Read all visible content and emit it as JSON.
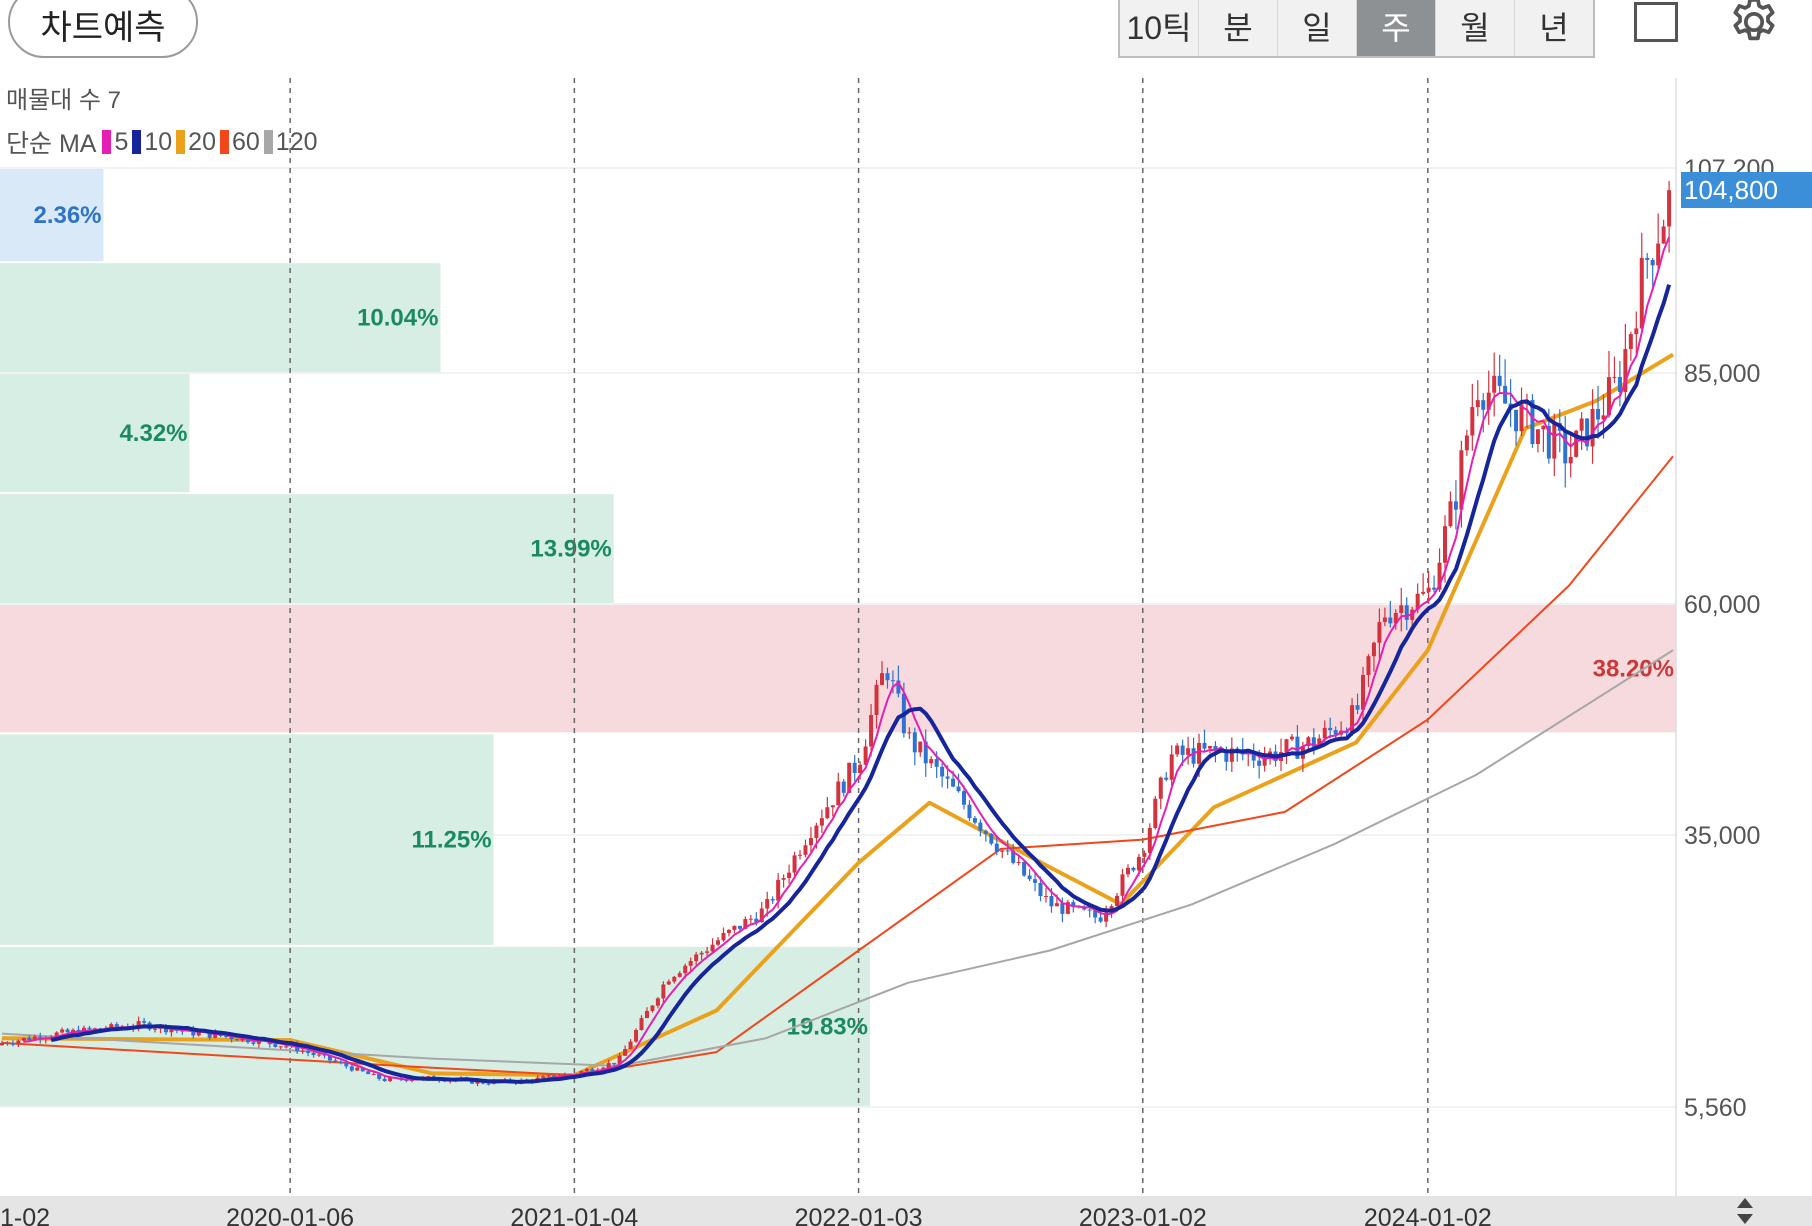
{
  "toolbar": {
    "predict_label": "차트예측",
    "periods": [
      "10틱",
      "분",
      "일",
      "주",
      "월",
      "년"
    ],
    "active_period": "주",
    "icons": [
      "square-icon",
      "gear-icon"
    ]
  },
  "chart_header": {
    "volume_profile_label": "매물대 수 7",
    "ma_prefix": "단순 MA",
    "ma_items": [
      {
        "label": "5",
        "color": "#e61fb4"
      },
      {
        "label": "10",
        "color": "#17259a"
      },
      {
        "label": "20",
        "color": "#eaa21c"
      },
      {
        "label": "60",
        "color": "#f1471b"
      },
      {
        "label": "120",
        "color": "#a7a7a7"
      }
    ]
  },
  "last_price_label": "104,800",
  "chart_data": {
    "type": "candlestick",
    "period": "weekly",
    "x_tick_labels": [
      "1-02",
      "2020-01-06",
      "2021-01-04",
      "2022-01-03",
      "2023-01-02",
      "2024-01-02"
    ],
    "y_tick_labels": [
      "107,200",
      "85,000",
      "60,000",
      "35,000",
      "5,560"
    ],
    "y_ticks": [
      107200,
      85000,
      60000,
      35000,
      5560
    ],
    "last_price": 104800,
    "grid": true,
    "colors": {
      "up": "#d3323f",
      "down": "#2f73d1",
      "volume_profile": "#d7eee4",
      "volume_profile_max": "#f7dadd",
      "volume_profile_top": "#d9e9f8"
    },
    "volume_profile": [
      {
        "range": [
          97000,
          107200
        ],
        "pct": "2.36%",
        "value": 2.36,
        "label_color": "#2f73c4"
      },
      {
        "range": [
          85000,
          97000
        ],
        "pct": "10.04%",
        "value": 10.04,
        "label_color": "#1a8a63"
      },
      {
        "range": [
          72000,
          85000
        ],
        "pct": "4.32%",
        "value": 4.32,
        "label_color": "#1a8a63"
      },
      {
        "range": [
          60000,
          72000
        ],
        "pct": "13.99%",
        "value": 13.99,
        "label_color": "#1a8a63"
      },
      {
        "range": [
          46000,
          60000
        ],
        "pct": "38.20%",
        "value": 38.2,
        "label_color": "#c83a3a"
      },
      {
        "range": [
          23000,
          46000
        ],
        "pct": "11.25%",
        "value": 11.25,
        "label_color": "#1a8a63"
      },
      {
        "range": [
          5560,
          23000
        ],
        "pct": "19.83%",
        "value": 19.83,
        "label_color": "#1a8a63"
      }
    ],
    "price_series": [
      [
        "2019-01-02",
        12500
      ],
      [
        "2019-03-04",
        13400
      ],
      [
        "2019-05-06",
        14000
      ],
      [
        "2019-07-01",
        14500
      ],
      [
        "2019-09-02",
        13600
      ],
      [
        "2019-11-04",
        13000
      ],
      [
        "2020-01-06",
        12100
      ],
      [
        "2020-03-02",
        10500
      ],
      [
        "2020-05-04",
        8500
      ],
      [
        "2020-07-06",
        8700
      ],
      [
        "2020-09-07",
        8200
      ],
      [
        "2020-11-02",
        8400
      ],
      [
        "2021-01-04",
        9200
      ],
      [
        "2021-03-01",
        10500
      ],
      [
        "2021-05-03",
        19500
      ],
      [
        "2021-07-05",
        23500
      ],
      [
        "2021-09-06",
        27000
      ],
      [
        "2021-11-01",
        35500
      ],
      [
        "2022-01-03",
        43000
      ],
      [
        "2022-02-07",
        53500
      ],
      [
        "2022-03-07",
        45500
      ],
      [
        "2022-05-02",
        40000
      ],
      [
        "2022-07-04",
        33500
      ],
      [
        "2022-09-05",
        27500
      ],
      [
        "2022-11-07",
        26000
      ],
      [
        "2023-01-02",
        33500
      ],
      [
        "2023-02-06",
        43500
      ],
      [
        "2023-04-03",
        44000
      ],
      [
        "2023-06-05",
        43500
      ],
      [
        "2023-08-07",
        45000
      ],
      [
        "2023-10-02",
        48000
      ],
      [
        "2023-11-06",
        59000
      ],
      [
        "2024-01-02",
        61000
      ],
      [
        "2024-02-05",
        71000
      ],
      [
        "2024-03-04",
        84000
      ],
      [
        "2024-05-06",
        80000
      ],
      [
        "2024-07-01",
        76000
      ],
      [
        "2024-09-02",
        84000
      ],
      [
        "2024-10-07",
        97000
      ],
      [
        "2024-11-11",
        104800
      ]
    ],
    "ma_series": {
      "MA20": [
        [
          "2019-01-02",
          13000
        ],
        [
          "2020-01-06",
          12800
        ],
        [
          "2020-07-06",
          9200
        ],
        [
          "2021-01-04",
          9000
        ],
        [
          "2021-07-05",
          16000
        ],
        [
          "2022-01-03",
          32000
        ],
        [
          "2022-04-04",
          38500
        ],
        [
          "2022-09-05",
          31500
        ],
        [
          "2022-12-05",
          27500
        ],
        [
          "2023-04-03",
          38000
        ],
        [
          "2023-10-02",
          45000
        ],
        [
          "2024-01-02",
          55000
        ],
        [
          "2024-05-06",
          79000
        ],
        [
          "2024-08-05",
          82000
        ],
        [
          "2024-11-11",
          87000
        ]
      ],
      "MA60": [
        [
          "2019-01-02",
          12500
        ],
        [
          "2020-07-06",
          9800
        ],
        [
          "2021-01-04",
          9000
        ],
        [
          "2021-07-05",
          11500
        ],
        [
          "2022-01-03",
          22500
        ],
        [
          "2022-07-04",
          33500
        ],
        [
          "2023-01-02",
          34500
        ],
        [
          "2023-07-03",
          37500
        ],
        [
          "2024-01-02",
          47500
        ],
        [
          "2024-07-01",
          62000
        ],
        [
          "2024-11-11",
          76000
        ]
      ],
      "MA120": [
        [
          "2019-01-02",
          13500
        ],
        [
          "2020-07-06",
          10800
        ],
        [
          "2021-03-01",
          10000
        ],
        [
          "2021-09-06",
          13000
        ],
        [
          "2022-03-07",
          19000
        ],
        [
          "2022-09-05",
          22500
        ],
        [
          "2023-03-06",
          27500
        ],
        [
          "2023-09-04",
          34000
        ],
        [
          "2024-03-04",
          41500
        ],
        [
          "2024-11-11",
          55000
        ]
      ]
    }
  }
}
